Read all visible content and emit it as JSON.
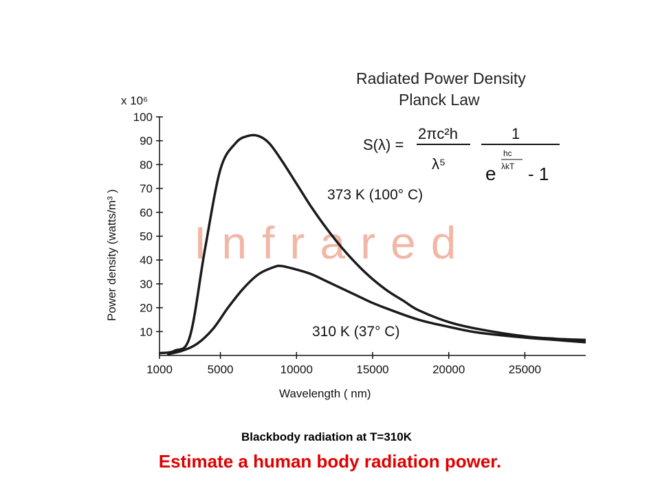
{
  "chart_data": {
    "type": "line",
    "title": "Radiated Power Density",
    "subtitle": "Planck Law",
    "xlabel": "Wavelength ( nm)",
    "ylabel": "Power density (watts/m³ )",
    "y_multiplier": "x 10⁶",
    "xlim": [
      1000,
      29000
    ],
    "ylim": [
      0,
      100
    ],
    "x_ticks": [
      1000,
      5000,
      10000,
      15000,
      20000,
      25000
    ],
    "y_ticks": [
      10,
      20,
      30,
      40,
      50,
      60,
      70,
      80,
      90,
      100
    ],
    "grid": false,
    "watermark": "Infrared",
    "series": [
      {
        "name": "373 K (100° C)",
        "x": [
          1000,
          2000,
          3000,
          4000,
          5000,
          6000,
          6800,
          7500,
          8200,
          9000,
          10000,
          11000,
          12000,
          13000,
          14000,
          15000,
          16000,
          17000,
          18000,
          20000,
          22000,
          25000,
          27000,
          29000
        ],
        "y": [
          1,
          2,
          8,
          45,
          78,
          89,
          92,
          92,
          89,
          82,
          72,
          62,
          53,
          45,
          38,
          32,
          27,
          23,
          19,
          14,
          11,
          8,
          7,
          6.5
        ]
      },
      {
        "name": "310 K (37° C)",
        "x": [
          1500,
          2500,
          3500,
          4500,
          5500,
          6500,
          7500,
          8500,
          9000,
          10000,
          11000,
          12000,
          13000,
          14000,
          15000,
          16000,
          18000,
          20000,
          22000,
          25000,
          27000,
          29000
        ],
        "y": [
          0.5,
          2,
          5,
          11,
          20,
          28,
          34,
          37,
          37.5,
          36,
          34,
          31,
          28,
          25,
          22,
          19.5,
          15,
          12,
          9.5,
          7.5,
          6.5,
          5.5
        ]
      }
    ],
    "formula": {
      "lhs": "S(λ) =",
      "num1": "2πc²h",
      "den1": "λ⁵",
      "num2": "1",
      "exp_base": "e",
      "exp_num": "hc",
      "exp_den": "λkT",
      "minus_one": "- 1"
    }
  },
  "caption": {
    "line1": "Blackbody radiation at T=310K",
    "line2": "Estimate a human body radiation power."
  }
}
